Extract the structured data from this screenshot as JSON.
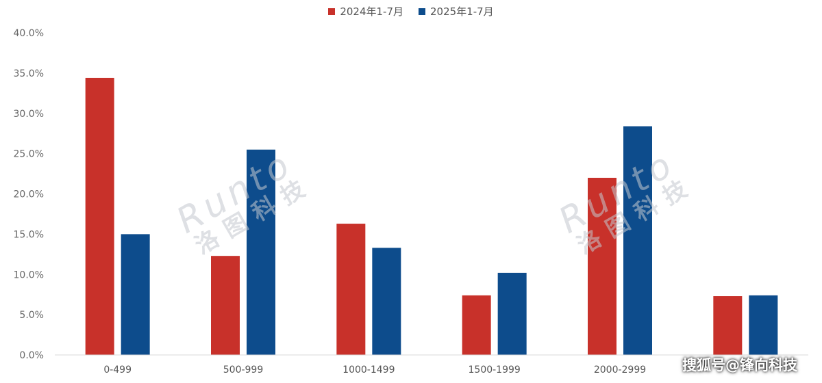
{
  "chart_data": {
    "type": "bar",
    "categories": [
      "0-499",
      "500-999",
      "1000-1499",
      "1500-1999",
      "2000-2999",
      ""
    ],
    "series": [
      {
        "name": "2024年1-7月",
        "color": "#c8312a",
        "values": [
          34.4,
          12.3,
          16.3,
          7.4,
          22.0,
          7.3
        ]
      },
      {
        "name": "2025年1-7月",
        "color": "#0d4c8c",
        "values": [
          15.0,
          25.5,
          13.3,
          10.2,
          28.4,
          7.4
        ]
      }
    ],
    "ylim": [
      0,
      40
    ],
    "yticks": [
      "0.0%",
      "5.0%",
      "10.0%",
      "15.0%",
      "20.0%",
      "25.0%",
      "30.0%",
      "35.0%",
      "40.0%"
    ],
    "yunit": "%",
    "grid": false,
    "legend_position": "top-center"
  },
  "watermark": {
    "latin": "Runto",
    "chinese": "洛图科技"
  },
  "source_label": "搜狐号@锋向科技"
}
